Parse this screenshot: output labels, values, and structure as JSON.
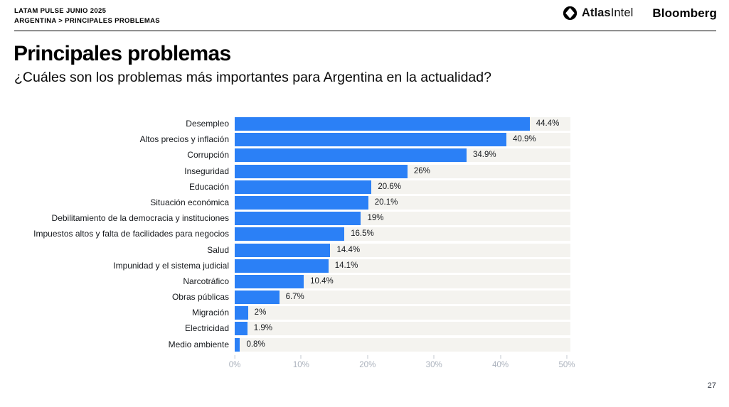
{
  "header": {
    "line1": "LATAM PULSE JUNIO 2025",
    "line2": "ARGENTINA > PRINCIPALES PROBLEMAS"
  },
  "logos": {
    "atlas_bold": "Atlas",
    "atlas_regular": "Intel",
    "bloomberg": "Bloomberg"
  },
  "page": {
    "title": "Principales problemas",
    "subtitle": "¿Cuáles son los problemas más importantes para Argentina en la actualidad?",
    "page_number": "27"
  },
  "colors": {
    "bar": "#2b80f6",
    "track": "#f4f3ef",
    "tick_text": "#aab1bc",
    "label_text": "#15181c"
  },
  "chart_data": {
    "type": "bar",
    "orientation": "horizontal",
    "title": "Principales problemas",
    "xlabel": "",
    "ylabel": "",
    "categories": [
      "Desempleo",
      "Altos precios y inflación",
      "Corrupción",
      "Inseguridad",
      "Educación",
      "Situación económica",
      "Debilitamiento de la democracia y instituciones",
      "Impuestos altos y falta de facilidades para negocios",
      "Salud",
      "Impunidad y el sistema judicial",
      "Narcotráfico",
      "Obras públicas",
      "Migración",
      "Electricidad",
      "Medio ambiente"
    ],
    "values": [
      44.4,
      40.9,
      34.9,
      26,
      20.6,
      20.1,
      19,
      16.5,
      14.4,
      14.1,
      10.4,
      6.7,
      2,
      1.9,
      0.8
    ],
    "value_labels": [
      "44.4%",
      "40.9%",
      "34.9%",
      "26%",
      "20.6%",
      "20.1%",
      "19%",
      "16.5%",
      "14.4%",
      "14.1%",
      "10.4%",
      "6.7%",
      "2%",
      "1.9%",
      "0.8%"
    ],
    "xticks": [
      0,
      10,
      20,
      30,
      40,
      50
    ],
    "xtick_labels": [
      "0%",
      "10%",
      "20%",
      "30%",
      "40%",
      "50%"
    ],
    "xlim": [
      0,
      50
    ],
    "grid": false,
    "legend": false
  }
}
